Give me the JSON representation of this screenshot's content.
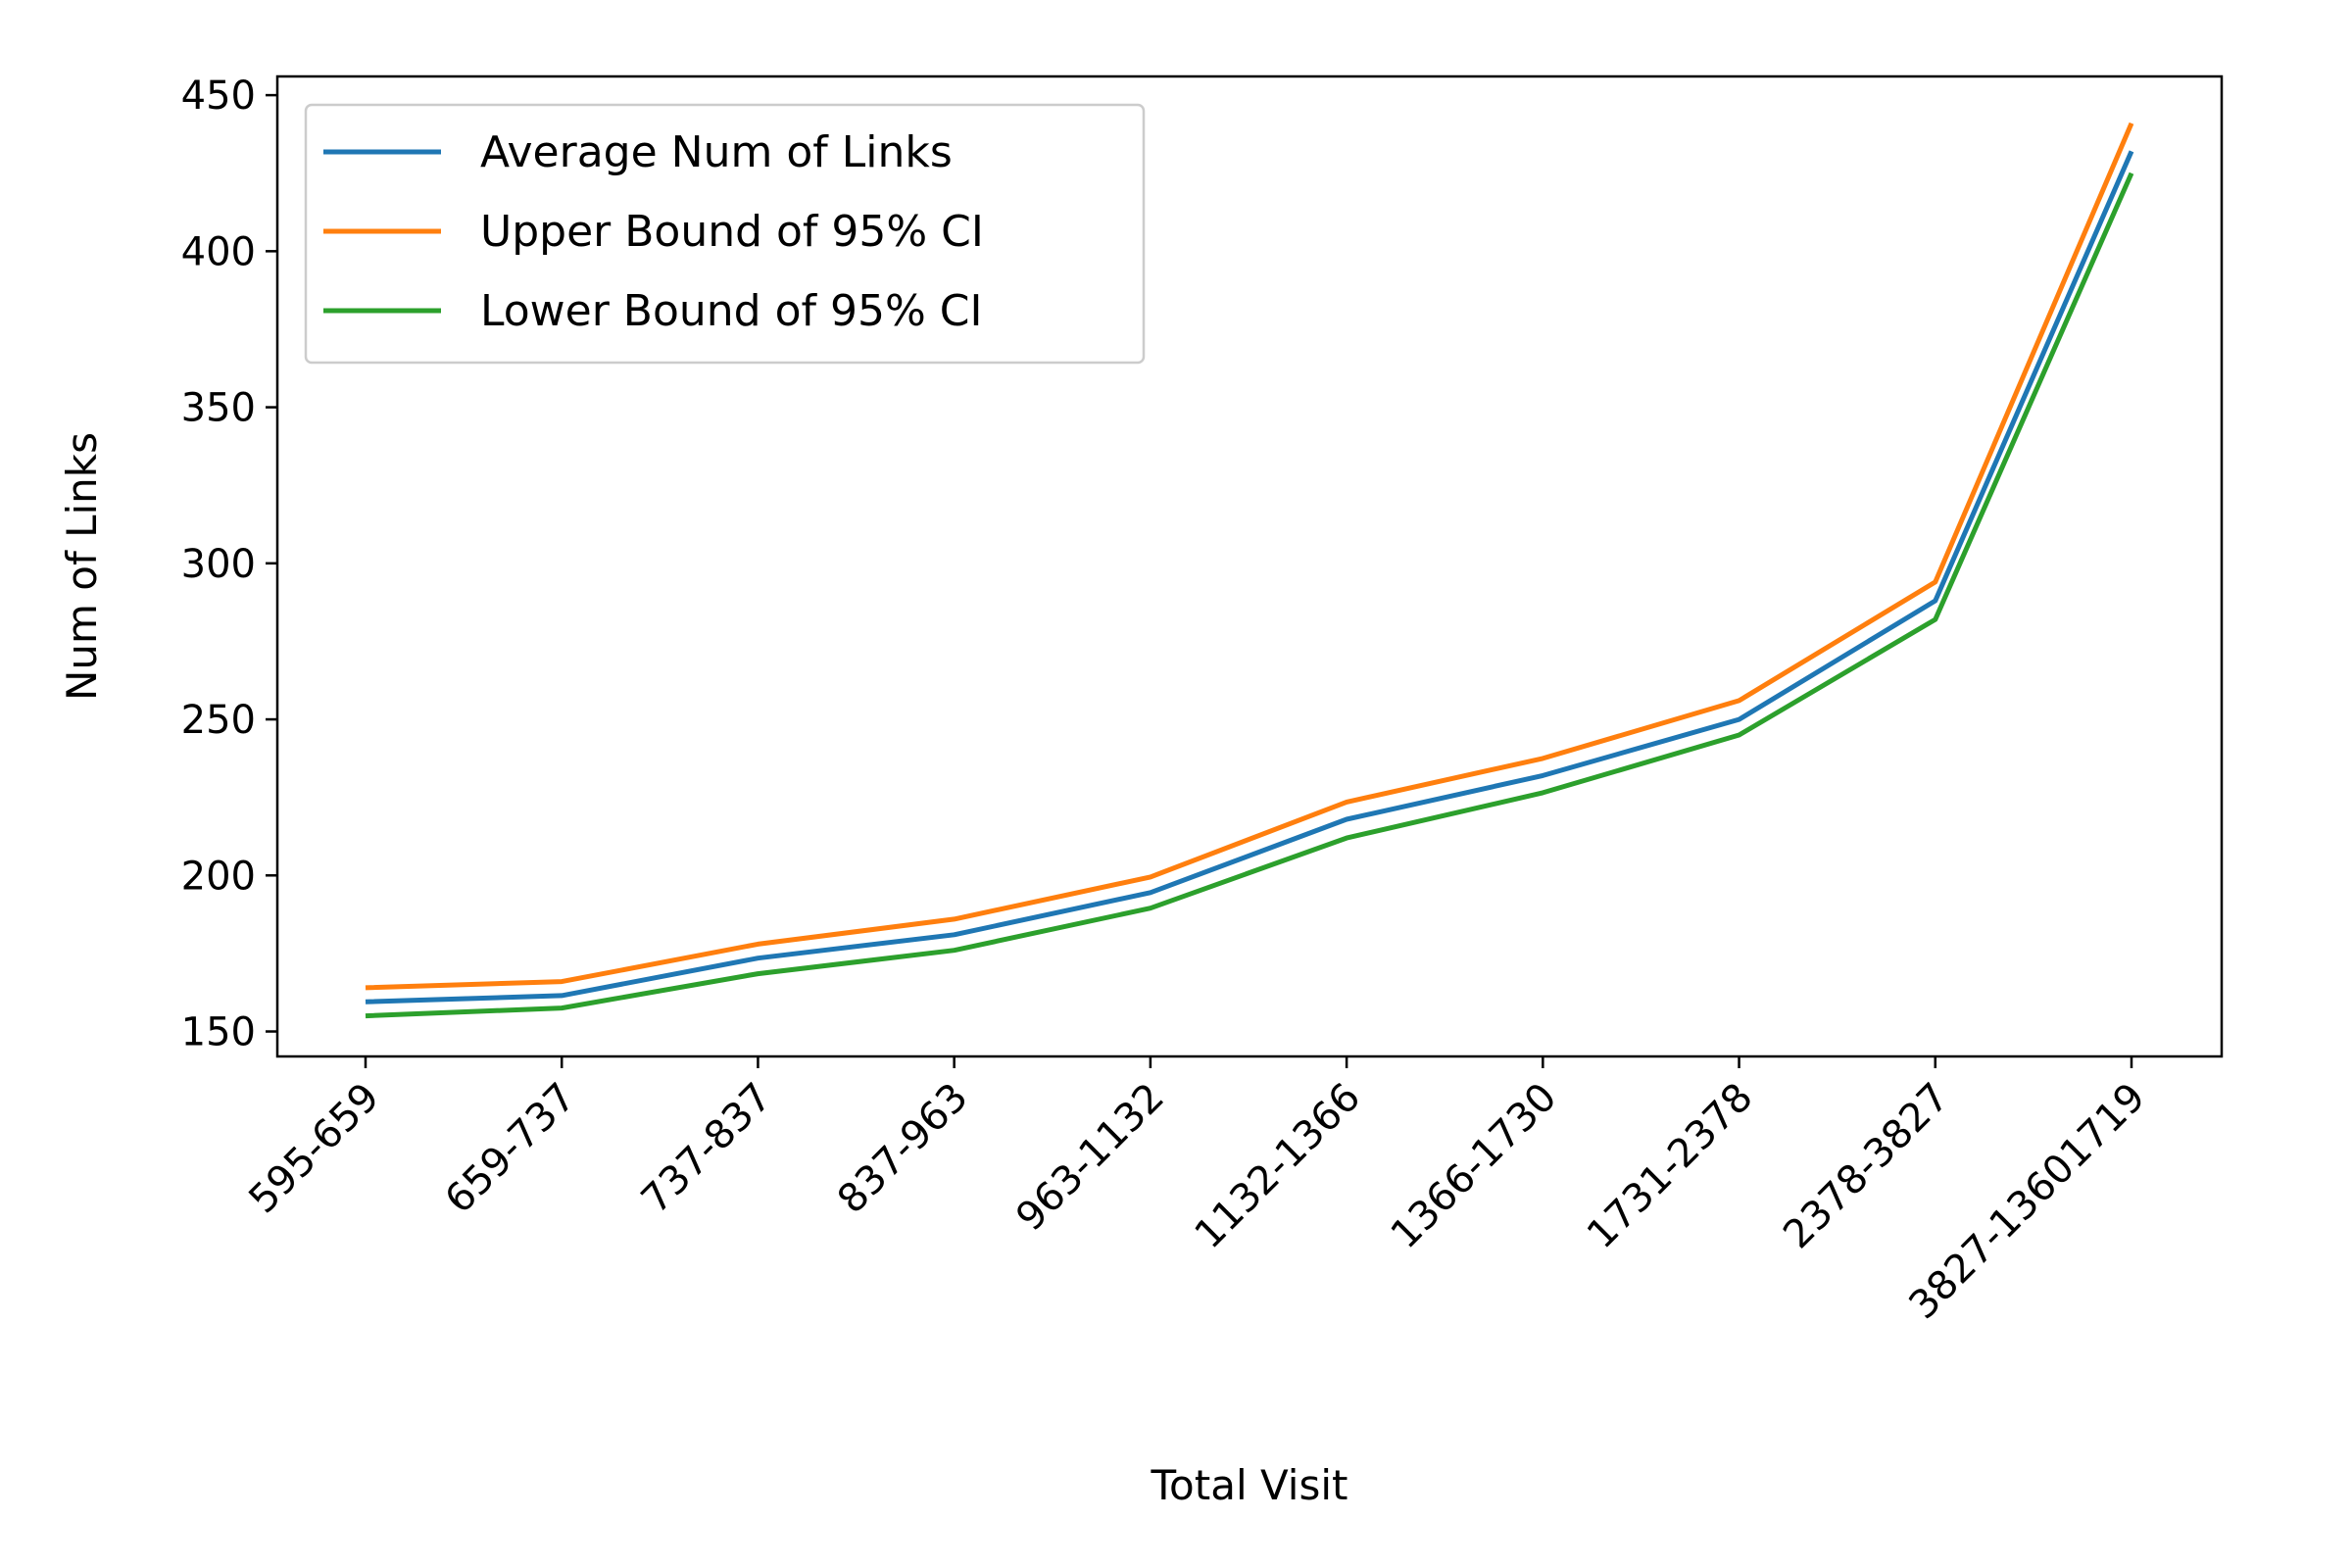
{
  "chart_data": {
    "type": "line",
    "title": "",
    "xlabel": "Total Visit",
    "ylabel": "Num of Links",
    "categories": [
      "595-659",
      "659-737",
      "737-837",
      "837-963",
      "963-1132",
      "1132-1366",
      "1366-1730",
      "1731-2378",
      "2378-3827",
      "3827-13601719"
    ],
    "ylim": [
      142,
      456
    ],
    "yticks": [
      150,
      200,
      250,
      300,
      350,
      400,
      450
    ],
    "grid": false,
    "legend_position": "top-left",
    "series": [
      {
        "name": "Average Num of Links",
        "color": "#1f77b4",
        "values": [
          159.5,
          161.5,
          173.5,
          181,
          194.5,
          218,
          232,
          250,
          288,
          432
        ]
      },
      {
        "name": "Upper Bound of 95% CI",
        "color": "#ff7f0e",
        "values": [
          164,
          166,
          178,
          186,
          199.5,
          223.5,
          237.5,
          256,
          294,
          441
        ]
      },
      {
        "name": "Lower Bound of 95% CI",
        "color": "#2ca02c",
        "values": [
          155,
          157.5,
          168.5,
          176,
          189.5,
          212,
          226.5,
          245,
          282,
          425
        ]
      }
    ]
  }
}
